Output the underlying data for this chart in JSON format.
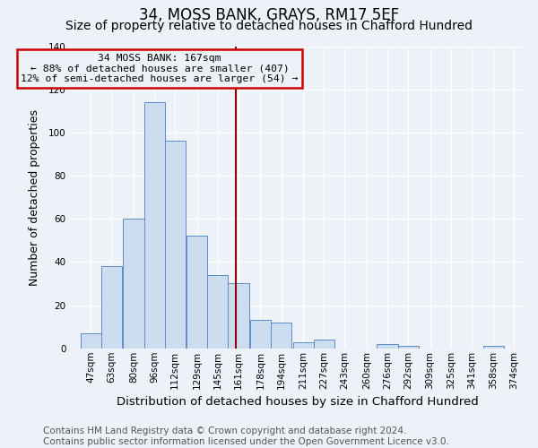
{
  "title": "34, MOSS BANK, GRAYS, RM17 5EF",
  "subtitle": "Size of property relative to detached houses in Chafford Hundred",
  "xlabel": "Distribution of detached houses by size in Chafford Hundred",
  "ylabel": "Number of detached properties",
  "footer_line1": "Contains HM Land Registry data © Crown copyright and database right 2024.",
  "footer_line2": "Contains public sector information licensed under the Open Government Licence v3.0.",
  "bins_left": [
    47,
    63,
    80,
    96,
    112,
    129,
    145,
    161,
    178,
    194,
    211,
    227,
    243,
    260,
    276,
    292,
    309,
    325,
    341,
    358
  ],
  "bin_labels": [
    "47sqm",
    "63sqm",
    "80sqm",
    "96sqm",
    "112sqm",
    "129sqm",
    "145sqm",
    "161sqm",
    "178sqm",
    "194sqm",
    "211sqm",
    "227sqm",
    "243sqm",
    "260sqm",
    "276sqm",
    "292sqm",
    "309sqm",
    "325sqm",
    "341sqm",
    "358sqm",
    "374sqm"
  ],
  "counts": [
    7,
    38,
    60,
    114,
    96,
    52,
    34,
    30,
    13,
    12,
    3,
    4,
    0,
    0,
    2,
    1,
    0,
    0,
    0,
    1
  ],
  "bar_color": "#ccddf0",
  "bar_edge_color": "#5b8dc8",
  "property_value": 167,
  "vline_color": "#8b0000",
  "annotation_text_line1": "34 MOSS BANK: 167sqm",
  "annotation_text_line2": "← 88% of detached houses are smaller (407)",
  "annotation_text_line3": "12% of semi-detached houses are larger (54) →",
  "annotation_box_edge_color": "#cc0000",
  "ylim": [
    0,
    140
  ],
  "yticks": [
    0,
    20,
    40,
    60,
    80,
    100,
    120,
    140
  ],
  "background_color": "#edf1f8",
  "grid_color": "#ffffff",
  "title_fontsize": 12,
  "subtitle_fontsize": 10,
  "xlabel_fontsize": 9.5,
  "ylabel_fontsize": 9,
  "tick_fontsize": 7.5,
  "footer_fontsize": 7.5,
  "bin_width": 16,
  "xlim_min": 39,
  "xlim_max": 390
}
